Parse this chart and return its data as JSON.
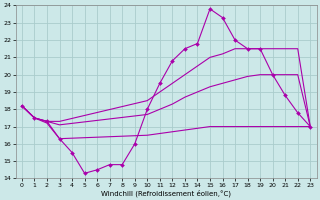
{
  "xlabel": "Windchill (Refroidissement éolien,°C)",
  "background_color": "#cce8e8",
  "grid_color": "#aacccc",
  "line_color": "#aa00aa",
  "xlim": [
    -0.5,
    23.5
  ],
  "ylim": [
    14,
    24
  ],
  "yticks": [
    14,
    15,
    16,
    17,
    18,
    19,
    20,
    21,
    22,
    23,
    24
  ],
  "xticks": [
    0,
    1,
    2,
    3,
    4,
    5,
    6,
    7,
    8,
    9,
    10,
    11,
    12,
    13,
    14,
    15,
    16,
    17,
    18,
    19,
    20,
    21,
    22,
    23
  ],
  "line1_x": [
    0,
    1,
    2,
    3,
    4,
    5,
    6,
    7,
    8,
    9,
    10,
    11,
    12,
    13,
    14,
    15,
    16,
    17,
    18,
    19,
    20,
    21,
    22,
    23
  ],
  "line1_y": [
    18.2,
    17.5,
    17.3,
    16.3,
    15.5,
    14.3,
    14.5,
    14.8,
    14.8,
    16.0,
    18.0,
    19.5,
    20.8,
    21.5,
    21.8,
    23.8,
    23.3,
    22.0,
    21.5,
    21.5,
    20.0,
    18.8,
    17.8,
    17.0
  ],
  "line2_x": [
    0,
    1,
    2,
    3,
    10,
    11,
    12,
    13,
    14,
    15,
    16,
    17,
    18,
    19,
    20,
    21,
    22,
    23
  ],
  "line2_y": [
    18.2,
    17.5,
    17.3,
    17.3,
    18.5,
    19.0,
    19.5,
    20.0,
    20.5,
    21.0,
    21.2,
    21.5,
    21.5,
    21.5,
    21.5,
    21.5,
    21.5,
    17.0
  ],
  "line3_x": [
    0,
    1,
    2,
    3,
    10,
    11,
    12,
    13,
    14,
    15,
    16,
    17,
    18,
    19,
    20,
    21,
    22,
    23
  ],
  "line3_y": [
    18.2,
    17.5,
    17.3,
    17.1,
    17.7,
    18.0,
    18.3,
    18.7,
    19.0,
    19.3,
    19.5,
    19.7,
    19.9,
    20.0,
    20.0,
    20.0,
    20.0,
    17.0
  ],
  "line4_x": [
    0,
    1,
    2,
    3,
    10,
    11,
    12,
    13,
    14,
    15,
    16,
    17,
    18,
    19,
    20,
    21,
    22,
    23
  ],
  "line4_y": [
    18.2,
    17.5,
    17.2,
    16.3,
    16.5,
    16.6,
    16.7,
    16.8,
    16.9,
    17.0,
    17.0,
    17.0,
    17.0,
    17.0,
    17.0,
    17.0,
    17.0,
    17.0
  ]
}
